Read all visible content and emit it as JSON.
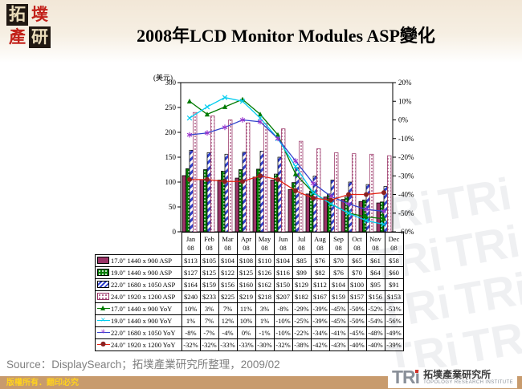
{
  "title": "2008年LCD Monitor Modules ASP變化",
  "logo_topleft": {
    "chars": [
      "拓",
      "墣",
      "產",
      "研"
    ]
  },
  "watermark": {
    "text": "TRi"
  },
  "source": "Source：DisplaySearch；拓墣產業研究所整理，2009/02",
  "footer": {
    "copyright": "版權所有．翻印必究"
  },
  "logo_bottomright": {
    "short": "TRi",
    "name_zh": "拓墣產業研究所",
    "name_en": "TOPOLOGY RESEARCH INSTITUTE"
  },
  "chart_data": {
    "type": "combo-bar-line",
    "categories": [
      "Jan 08",
      "Feb 08",
      "Mar 08",
      "Apr 08",
      "May 08",
      "Jun 08",
      "Jul 08",
      "Aug 08",
      "Sep 08",
      "Oct 08",
      "Nov 08",
      "Dec 08"
    ],
    "left_axis": {
      "unit_label": "(美元)",
      "min": 0,
      "max": 300,
      "step": 50,
      "ticks": [
        300,
        250,
        200,
        150,
        100,
        50,
        0
      ]
    },
    "right_axis": {
      "min": -60,
      "max": 20,
      "step": 10,
      "ticks": [
        "20%",
        "10%",
        "0%",
        "-10%",
        "-20%",
        "-30%",
        "-40%",
        "-50%",
        "-60%"
      ]
    },
    "grid": "off",
    "legend_position": "data-table-left",
    "colors": {
      "plum": "#993366",
      "green": "#007A00",
      "blue": "#3344CC",
      "cyan": "#00CCEE",
      "red": "#E32212",
      "dark_red": "#8B2020",
      "purple": "#9933CC"
    },
    "value_prefix": "$",
    "yoy_suffix": "%",
    "bar_series": [
      {
        "name": "17.0\" 1440 x 900 ASP",
        "style": "plum",
        "values": [
          113,
          105,
          104,
          108,
          110,
          104,
          85,
          76,
          70,
          65,
          61,
          58
        ]
      },
      {
        "name": "19.0\" 1440 x 900 ASP",
        "style": "greenDots",
        "values": [
          127,
          125,
          122,
          125,
          126,
          116,
          99,
          82,
          76,
          70,
          64,
          60
        ]
      },
      {
        "name": "22.0\" 1680 x 1050 ASP",
        "style": "blueStripes",
        "values": [
          164,
          159,
          156,
          160,
          162,
          150,
          129,
          112,
          104,
          100,
          95,
          91
        ]
      },
      {
        "name": "24.0\" 1920 x 1200 ASP",
        "style": "purpleDots",
        "values": [
          240,
          233,
          225,
          219,
          218,
          207,
          182,
          167,
          159,
          157,
          156,
          153
        ]
      }
    ],
    "line_series": [
      {
        "name": "17.0\" 1440 x 900 YoY",
        "color": "#007A00",
        "marker": "triangle",
        "marker_color": "#007A00",
        "glyph": "▲",
        "values": [
          10,
          3,
          7,
          11,
          3,
          -8,
          -29,
          -39,
          -45,
          -50,
          -52,
          -53
        ]
      },
      {
        "name": "19.0\" 1440 x 900 YoY",
        "color": "#00CCEE",
        "marker": "x",
        "marker_color": "#00CCEE",
        "glyph": "×",
        "values": [
          1,
          7,
          12,
          10,
          1,
          -10,
          -25,
          -39,
          -45,
          -50,
          -54,
          -56
        ]
      },
      {
        "name": "22.0\" 1680 x 1050 YoY",
        "color": "#3344CC",
        "marker": "asterisk",
        "marker_color": "#9933CC",
        "glyph": "✳",
        "values": [
          -8,
          -7,
          -4,
          0,
          -1,
          -10,
          -22,
          -34,
          -41,
          -45,
          -48,
          -49
        ]
      },
      {
        "name": "24.0\" 1920 x 1200 YoY",
        "color": "#E32212",
        "marker": "circle",
        "marker_color": "#8B2020",
        "glyph": "●",
        "values": [
          -32,
          -32,
          -33,
          -33,
          -30,
          -32,
          -38,
          -42,
          -43,
          -40,
          -40,
          -39
        ]
      }
    ]
  }
}
